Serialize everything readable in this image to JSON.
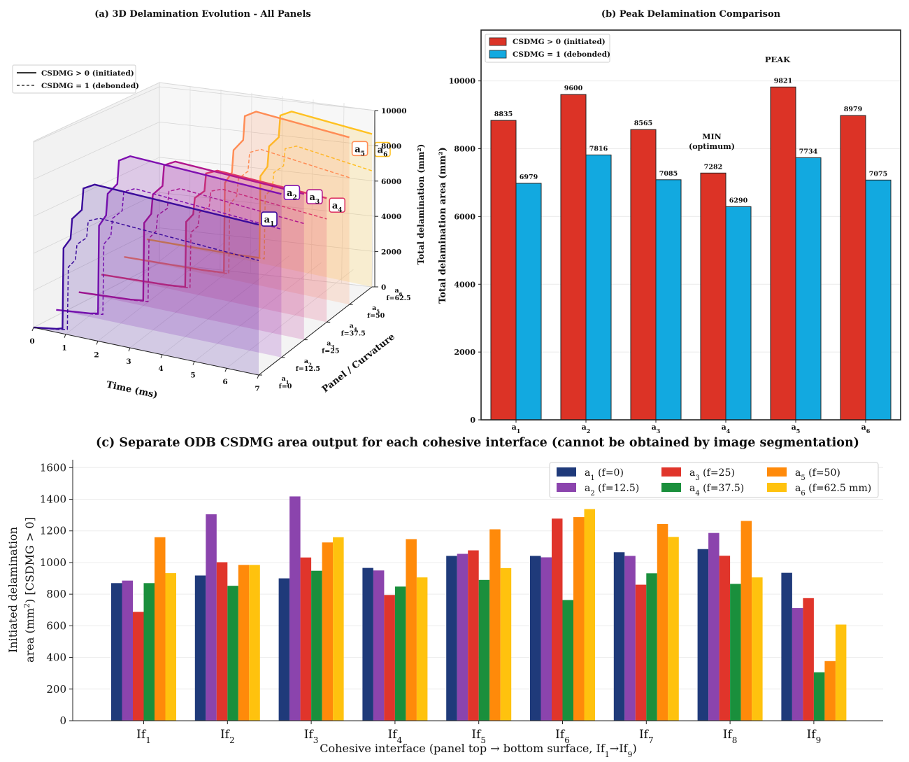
{
  "colors": {
    "initiated": "#dc3326",
    "debonded": "#12a9e0",
    "a1": "#1f3a7a",
    "a2": "#8b44ad",
    "a3": "#e0352b",
    "a4": "#1a8f3c",
    "a5": "#ff8a0a",
    "a6": "#ffc20e",
    "p1": "#3b0b9b",
    "p2": "#7f10b0",
    "p3": "#b1168d",
    "p4": "#de3a68",
    "p5": "#ff8c55",
    "p6": "#ffc120",
    "min_label": "#0b7a1f",
    "peak_label": "#b0141a",
    "bar_label_red": "#c0221a",
    "bar_label_blue": "#0b72b3"
  },
  "chart_data": [
    {
      "id": "a",
      "type": "line",
      "title": "(a) 3D Delamination Evolution - All Panels",
      "xlabel": "Time (ms)",
      "ylabel": "Panel / Curvature",
      "x_ticks": [
        "0",
        "1",
        "2",
        "3",
        "4",
        "5",
        "6",
        "7"
      ],
      "z_ticks": [
        "0",
        "2000",
        "4000",
        "6000",
        "8000",
        "10000"
      ],
      "panels": [
        {
          "sub": "1",
          "curv": "f=0"
        },
        {
          "sub": "2",
          "curv": "f=12.5"
        },
        {
          "sub": "3",
          "curv": "f=25"
        },
        {
          "sub": "4",
          "curv": "f=37.5"
        },
        {
          "sub": "5",
          "curv": "f=50"
        },
        {
          "sub": "6",
          "curv": "f=62.5"
        }
      ],
      "legend": [
        {
          "label": "CSDMG > 0 (initiated)",
          "style": "solid"
        },
        {
          "label": "CSDMG = 1 (debonded)",
          "style": "dashed"
        }
      ]
    },
    {
      "id": "b",
      "type": "bar",
      "title": "(b) Peak Delamination Comparison",
      "ylabel_outer": "Total delamination (mm²)",
      "ylabel_inner": "Total delamination area (mm²)",
      "categories": [
        "1",
        "2",
        "3",
        "4",
        "5",
        "6"
      ],
      "ylim": [
        0,
        11500
      ],
      "y_ticks": [
        "0",
        "2000",
        "4000",
        "6000",
        "8000",
        "10000"
      ],
      "series": [
        {
          "name": "CSDMG > 0 (initiated)",
          "values": [
            8835,
            9600,
            8565,
            7282,
            9821,
            8979
          ]
        },
        {
          "name": "CSDMG = 1 (debonded)",
          "values": [
            6979,
            7816,
            7085,
            6290,
            7734,
            7075
          ]
        }
      ],
      "value_labels_initiated": [
        "8835",
        "9600",
        "8565",
        "7282",
        "9821",
        "8979"
      ],
      "value_labels_debonded": [
        "6979",
        "7816",
        "7085",
        "6290",
        "7734",
        "7075"
      ],
      "annotations": {
        "min_line1": "MIN",
        "min_line2": "(optimum)",
        "peak": "PEAK"
      }
    },
    {
      "id": "c",
      "type": "bar",
      "title": "(c) Separate ODB CSDMG area output for each cohesive interface (cannot be obtained by image segmentation)",
      "xlabel_pre": "Cohesive interface (panel top",
      "xlabel_mid": "bottom surface, If",
      "xlabel_end": ")",
      "ylabel_line1": "Initiated delamination",
      "ylabel_line2_pre": "area (mm",
      "ylabel_line2_post": ") [CSDMG > 0]",
      "ylim": [
        0,
        1650
      ],
      "y_ticks": [
        "0",
        "200",
        "400",
        "600",
        "800",
        "1000",
        "1200",
        "1400",
        "1600"
      ],
      "categories": [
        "1",
        "2",
        "3",
        "4",
        "5",
        "6",
        "7",
        "8",
        "9"
      ],
      "series": [
        {
          "name": "(f=0)",
          "sub": "1",
          "values": [
            870,
            918,
            900,
            966,
            1042,
            1042,
            1065,
            1085,
            935
          ]
        },
        {
          "name": "(f=12.5)",
          "sub": "2",
          "values": [
            886,
            1305,
            1418,
            950,
            1055,
            1033,
            1042,
            1187,
            712
          ]
        },
        {
          "name": "(f=25)",
          "sub": "3",
          "values": [
            688,
            1002,
            1032,
            795,
            1077,
            1278,
            860,
            1043,
            775
          ]
        },
        {
          "name": "(f=37.5)",
          "sub": "4",
          "values": [
            870,
            853,
            948,
            848,
            890,
            763,
            932,
            865,
            306
          ]
        },
        {
          "name": "(f=50)",
          "sub": "5",
          "values": [
            1160,
            985,
            1127,
            1148,
            1210,
            1287,
            1243,
            1263,
            377
          ]
        },
        {
          "name": "(f=62.5 mm)",
          "sub": "6",
          "values": [
            933,
            985,
            1160,
            906,
            965,
            1338,
            1162,
            906,
            608
          ]
        }
      ]
    }
  ]
}
